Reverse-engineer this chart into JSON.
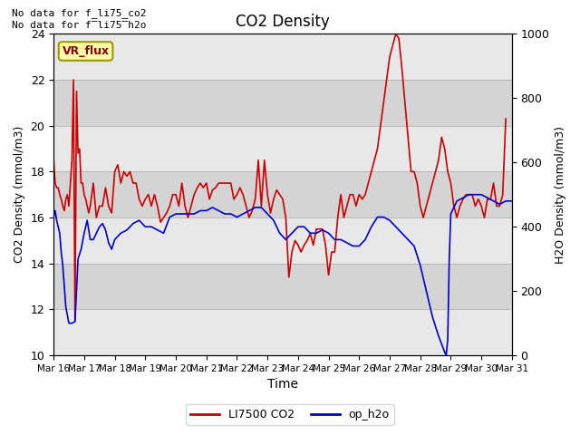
{
  "title": "CO2 Density",
  "xlabel": "Time",
  "ylabel_left": "CO2 Density (mmol/m3)",
  "ylabel_right": "H2O Density (mmol/m3)",
  "no_data_text1": "No data for f_li75_co2",
  "no_data_text2": "No data for f̅li75̅h2o",
  "vr_flux_label": "VR_flux",
  "left_ylim": [
    10,
    24
  ],
  "right_ylim": [
    0,
    1000
  ],
  "background_color": "#ffffff",
  "legend_entries": [
    "LI7500 CO2",
    "op_h2o"
  ],
  "legend_colors": [
    "#cc0000",
    "#0000cc"
  ],
  "x_tick_labels": [
    "Mar 16",
    "Mar 17",
    "Mar 18",
    "Mar 19",
    "Mar 20",
    "Mar 21",
    "Mar 22",
    "Mar 23",
    "Mar 24",
    "Mar 25",
    "Mar 26",
    "Mar 27",
    "Mar 28",
    "Mar 29",
    "Mar 30",
    "Mar 31"
  ],
  "x_ticks": [
    0,
    1,
    2,
    3,
    4,
    5,
    6,
    7,
    8,
    9,
    10,
    11,
    12,
    13,
    14,
    15
  ],
  "y_left_ticks": [
    10,
    12,
    14,
    16,
    18,
    20,
    22,
    24
  ],
  "y_right_ticks": [
    0,
    200,
    400,
    600,
    800,
    1000
  ],
  "red_x": [
    0.0,
    0.05,
    0.1,
    0.15,
    0.2,
    0.25,
    0.3,
    0.35,
    0.4,
    0.45,
    0.5,
    0.55,
    0.6,
    0.65,
    0.7,
    0.75,
    0.8,
    0.85,
    0.9,
    0.95,
    1.0,
    1.05,
    1.1,
    1.15,
    1.2,
    1.3,
    1.4,
    1.5,
    1.6,
    1.7,
    1.8,
    1.9,
    2.0,
    2.1,
    2.2,
    2.3,
    2.4,
    2.5,
    2.6,
    2.7,
    2.8,
    2.9,
    3.0,
    3.1,
    3.2,
    3.3,
    3.4,
    3.5,
    3.6,
    3.7,
    3.8,
    3.9,
    4.0,
    4.1,
    4.2,
    4.3,
    4.4,
    4.5,
    4.6,
    4.7,
    4.8,
    4.9,
    5.0,
    5.1,
    5.2,
    5.3,
    5.4,
    5.5,
    5.6,
    5.7,
    5.8,
    5.9,
    6.0,
    6.1,
    6.2,
    6.3,
    6.4,
    6.5,
    6.6,
    6.7,
    6.8,
    6.9,
    7.0,
    7.1,
    7.2,
    7.3,
    7.4,
    7.5,
    7.6,
    7.7,
    7.8,
    7.9,
    8.0,
    8.1,
    8.2,
    8.3,
    8.4,
    8.5,
    8.6,
    8.7,
    8.8,
    8.9,
    9.0,
    9.1,
    9.2,
    9.3,
    9.4,
    9.5,
    9.6,
    9.7,
    9.8,
    9.9,
    10.0,
    10.1,
    10.2,
    10.3,
    10.4,
    10.5,
    10.6,
    10.7,
    10.8,
    10.9,
    11.0,
    11.1,
    11.2,
    11.3,
    11.4,
    11.5,
    11.6,
    11.7,
    11.8,
    11.9,
    12.0,
    12.1,
    12.2,
    12.3,
    12.4,
    12.5,
    12.6,
    12.7,
    12.8,
    12.9,
    13.0,
    13.1,
    13.2,
    13.3,
    13.4,
    13.5,
    13.6,
    13.7,
    13.8,
    13.9,
    14.0,
    14.1,
    14.2,
    14.3,
    14.4,
    14.5,
    14.6,
    14.7,
    14.8,
    14.9,
    15.0
  ],
  "red_y": [
    18.5,
    17.5,
    17.3,
    17.3,
    17.0,
    16.8,
    16.5,
    16.3,
    16.8,
    17.0,
    16.5,
    17.5,
    18.5,
    22.0,
    11.5,
    21.5,
    18.8,
    19.0,
    17.5,
    17.5,
    17.0,
    16.8,
    16.5,
    16.2,
    16.5,
    17.5,
    16.0,
    16.5,
    16.5,
    17.3,
    16.5,
    16.2,
    18.0,
    18.3,
    17.5,
    18.0,
    17.8,
    18.0,
    17.5,
    17.5,
    16.8,
    16.5,
    16.8,
    17.0,
    16.5,
    17.0,
    16.5,
    15.8,
    16.0,
    16.2,
    16.5,
    17.0,
    17.0,
    16.5,
    17.5,
    16.5,
    16.0,
    16.5,
    17.0,
    17.3,
    17.5,
    17.3,
    17.5,
    16.8,
    17.2,
    17.3,
    17.5,
    17.5,
    17.5,
    17.5,
    17.5,
    16.8,
    17.0,
    17.3,
    17.0,
    16.5,
    16.0,
    16.3,
    16.8,
    18.5,
    16.5,
    18.5,
    17.0,
    16.2,
    16.8,
    17.2,
    17.0,
    16.8,
    16.0,
    13.4,
    14.5,
    15.0,
    14.8,
    14.5,
    14.8,
    15.0,
    15.3,
    14.8,
    15.5,
    15.5,
    15.5,
    14.8,
    13.5,
    14.5,
    14.5,
    16.0,
    17.0,
    16.0,
    16.5,
    17.0,
    17.0,
    16.5,
    17.0,
    16.8,
    17.0,
    17.5,
    18.0,
    18.5,
    19.0,
    20.0,
    21.0,
    22.0,
    23.0,
    23.5,
    24.0,
    23.8,
    22.5,
    21.0,
    19.5,
    18.0,
    18.0,
    17.5,
    16.5,
    16.0,
    16.5,
    17.0,
    17.5,
    18.0,
    18.5,
    19.5,
    19.0,
    18.0,
    17.5,
    16.5,
    16.0,
    16.5,
    16.8,
    17.0,
    17.0,
    17.0,
    16.5,
    16.8,
    16.5,
    16.0,
    16.8,
    16.8,
    17.5,
    16.5,
    16.5,
    17.0,
    20.3
  ],
  "blue_x": [
    0.0,
    0.05,
    0.1,
    0.15,
    0.2,
    0.25,
    0.3,
    0.4,
    0.5,
    0.6,
    0.7,
    0.8,
    0.9,
    1.0,
    1.1,
    1.2,
    1.3,
    1.4,
    1.5,
    1.6,
    1.7,
    1.8,
    1.9,
    2.0,
    2.2,
    2.4,
    2.6,
    2.8,
    3.0,
    3.2,
    3.4,
    3.6,
    3.8,
    4.0,
    4.2,
    4.4,
    4.6,
    4.8,
    5.0,
    5.2,
    5.4,
    5.6,
    5.8,
    6.0,
    6.2,
    6.4,
    6.6,
    6.8,
    7.0,
    7.2,
    7.4,
    7.6,
    7.8,
    8.0,
    8.2,
    8.4,
    8.6,
    8.8,
    9.0,
    9.2,
    9.4,
    9.6,
    9.8,
    10.0,
    10.2,
    10.4,
    10.6,
    10.8,
    11.0,
    11.2,
    11.4,
    11.6,
    11.8,
    12.0,
    12.2,
    12.4,
    12.6,
    12.8,
    12.85,
    12.9,
    12.95,
    13.0,
    13.2,
    13.4,
    13.6,
    13.8,
    14.0,
    14.2,
    14.4,
    14.6,
    14.8,
    15.0
  ],
  "blue_y": [
    430,
    450,
    420,
    400,
    380,
    320,
    280,
    150,
    100,
    100,
    105,
    300,
    330,
    380,
    420,
    360,
    360,
    380,
    400,
    410,
    390,
    350,
    330,
    360,
    380,
    390,
    410,
    420,
    400,
    400,
    390,
    380,
    430,
    440,
    440,
    440,
    440,
    450,
    450,
    460,
    450,
    440,
    440,
    430,
    440,
    450,
    460,
    460,
    440,
    420,
    380,
    360,
    380,
    400,
    400,
    380,
    380,
    390,
    380,
    360,
    360,
    350,
    340,
    340,
    360,
    400,
    430,
    430,
    420,
    400,
    380,
    360,
    340,
    280,
    200,
    120,
    60,
    10,
    0,
    50,
    300,
    440,
    480,
    490,
    500,
    500,
    500,
    490,
    480,
    470,
    480,
    480
  ]
}
